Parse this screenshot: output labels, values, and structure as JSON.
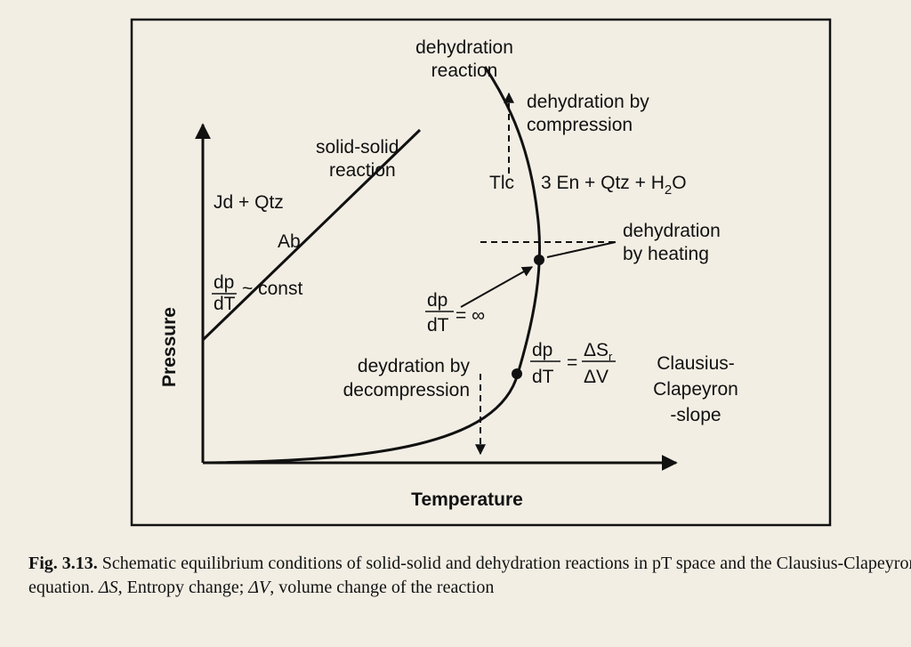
{
  "diagram": {
    "axes": {
      "y": "Pressure",
      "x": "Temperature"
    },
    "labels": {
      "dehydration_reaction": [
        "dehydration",
        "reaction"
      ],
      "compression": [
        "dehydration by",
        "compression"
      ],
      "solid_solid": [
        "solid-solid",
        "reaction"
      ],
      "jd_qtz": "Jd + Qtz",
      "ab": "Ab",
      "tlc": "Tlc",
      "products": {
        "main": "3 En + Qtz + H",
        "sub": "2",
        "tail": "O"
      },
      "heating": [
        "dehydration",
        "by heating"
      ],
      "decompression": [
        "deydration by",
        "decompression"
      ],
      "clausius": [
        "Clausius-",
        "Clapeyron",
        "-slope"
      ]
    },
    "equations": {
      "const": {
        "num": "dp",
        "den": "dT",
        "rel": "~ const"
      },
      "infinity": {
        "num": "dp",
        "den": "dT",
        "rel": "= ∞"
      },
      "clapeyron": {
        "num": "dp",
        "den": "dT",
        "rel": "=",
        "rnum": "ΔS",
        "rnum_sub": "r",
        "rden": "ΔV"
      }
    }
  },
  "caption": {
    "label": "Fig. 3.13.",
    "text1": " Schematic equilibrium conditions of solid-solid and dehydration reactions in pT space and the Clausius-Clapeyron equation. ",
    "ds": "ΔS",
    "text2": ", Entropy change; ",
    "dv": "ΔV",
    "text3": ", volume change of the reaction"
  }
}
